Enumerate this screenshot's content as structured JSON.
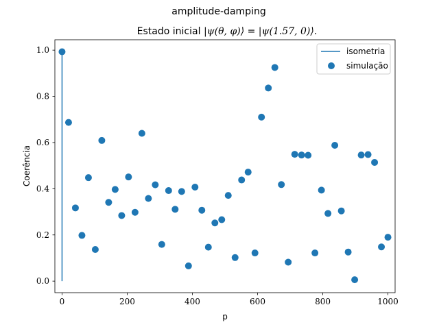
{
  "chart_data": {
    "type": "scatter",
    "suptitle": "amplitude-damping",
    "title_prefix": "Estado inicial ",
    "title_math": "|ψ(θ, φ)⟩ = |ψ(1.57, 0)⟩.",
    "xlabel": "p",
    "ylabel": "Coerência",
    "xlim": [
      -22,
      1022
    ],
    "ylim": [
      -0.05,
      1.045
    ],
    "xticks": [
      0,
      200,
      400,
      600,
      800,
      1000
    ],
    "xtick_labels": [
      "0",
      "200",
      "400",
      "600",
      "800",
      "1000"
    ],
    "yticks": [
      0.0,
      0.2,
      0.4,
      0.6,
      0.8,
      1.0
    ],
    "ytick_labels": [
      "0.0",
      "0.2",
      "0.4",
      "0.6",
      "0.8",
      "1.0"
    ],
    "grid": false,
    "legend_position": "upper right",
    "color": "#1f77b4",
    "series": [
      {
        "name": "isometria",
        "kind": "line",
        "x": [
          0,
          0
        ],
        "y": [
          1.0,
          0.0
        ]
      },
      {
        "name": "simulação",
        "kind": "scatter",
        "x": [
          0,
          20,
          41,
          61,
          81,
          102,
          122,
          143,
          163,
          183,
          204,
          224,
          245,
          265,
          286,
          306,
          327,
          347,
          367,
          388,
          408,
          429,
          449,
          469,
          490,
          510,
          531,
          551,
          571,
          592,
          612,
          633,
          653,
          673,
          694,
          714,
          735,
          755,
          776,
          796,
          816,
          837,
          857,
          878,
          898,
          918,
          939,
          959,
          980,
          1000
        ],
        "y": [
          0.993,
          0.687,
          0.317,
          0.198,
          0.448,
          0.137,
          0.609,
          0.341,
          0.397,
          0.284,
          0.451,
          0.298,
          0.64,
          0.358,
          0.417,
          0.159,
          0.392,
          0.311,
          0.388,
          0.066,
          0.407,
          0.307,
          0.147,
          0.252,
          0.266,
          0.371,
          0.102,
          0.438,
          0.472,
          0.122,
          0.71,
          0.836,
          0.925,
          0.418,
          0.082,
          0.549,
          0.546,
          0.545,
          0.122,
          0.394,
          0.293,
          0.588,
          0.304,
          0.126,
          0.006,
          0.546,
          0.548,
          0.514,
          0.148,
          0.19
        ]
      }
    ]
  }
}
